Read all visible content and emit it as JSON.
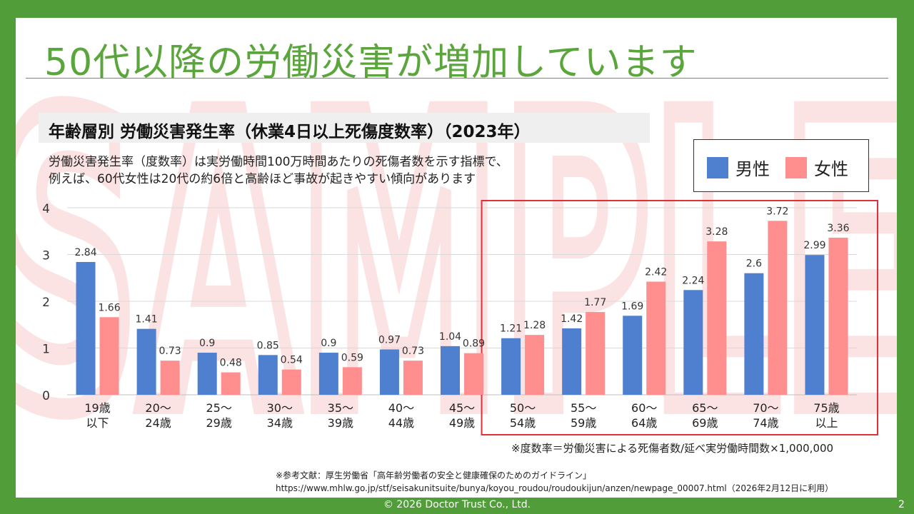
{
  "slide": {
    "title": "50代以降の労働災害が増加しています",
    "subtitle": "年齢層別 労働災害発生率（休業4日以上死傷度数率）（2023年）",
    "description_lines": [
      "労働災害発生率（度数率）は実労働時間100万時間あたりの死傷者数を示す指標で、",
      "例えば、60代女性は20代の約6倍と高齢ほど事故が起きやすい傾向があります"
    ],
    "footnote": "※度数率＝労働災害による死傷者数/延べ実労働時間数×1,000,000",
    "reference_line1": "※参考文献：厚生労働省「高年齢労働者の安全と健康確保のためのガイドライン」",
    "reference_line2": "https://www.mhlw.go.jp/stf/seisakunitsuite/bunya/koyou_roudou/roudoukijun/anzen/newpage_00007.html（2026年2月12日に利用）",
    "copyright": "© 2026 Doctor Trust Co., Ltd.",
    "page_number": "2",
    "watermark": "SAMPLE"
  },
  "colors": {
    "frame": "#519d3a",
    "title": "#5aa63c",
    "male": "#4f7fcf",
    "female": "#ff8f8f",
    "highlight_box": "#e0303a",
    "watermark": "#fbe3e3"
  },
  "chart_data": {
    "type": "bar",
    "categories": [
      [
        "19歳",
        "以下"
      ],
      [
        "20～",
        "24歳"
      ],
      [
        "25～",
        "29歳"
      ],
      [
        "30～",
        "34歳"
      ],
      [
        "35～",
        "39歳"
      ],
      [
        "40～",
        "44歳"
      ],
      [
        "45～",
        "49歳"
      ],
      [
        "50～",
        "54歳"
      ],
      [
        "55～",
        "59歳"
      ],
      [
        "60～",
        "64歳"
      ],
      [
        "65～",
        "69歳"
      ],
      [
        "70～",
        "74歳"
      ],
      [
        "75歳",
        "以上"
      ]
    ],
    "series": [
      {
        "name": "男性",
        "color": "#4f7fcf",
        "values": [
          2.84,
          1.41,
          0.9,
          0.85,
          0.9,
          0.97,
          1.04,
          1.21,
          1.42,
          1.69,
          2.24,
          2.6,
          2.99
        ]
      },
      {
        "name": "女性",
        "color": "#ff8f8f",
        "values": [
          1.66,
          0.73,
          0.48,
          0.54,
          0.59,
          0.73,
          0.89,
          1.28,
          1.77,
          2.42,
          3.28,
          3.72,
          3.36
        ]
      }
    ],
    "ylim": [
      0,
      4
    ],
    "yticks": [
      0,
      1,
      2,
      3,
      4
    ],
    "grid": true,
    "legend_position": "top-right",
    "highlight_categories": [
      "50～54歳",
      "55～59歳",
      "60～64歳",
      "65～69歳",
      "70～74歳",
      "75歳以上"
    ]
  }
}
